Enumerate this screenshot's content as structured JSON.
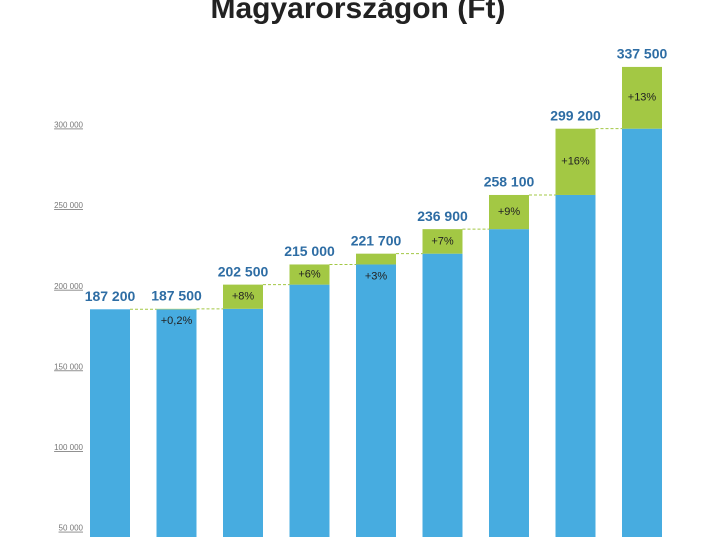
{
  "chart_data": {
    "type": "waterfall",
    "title": "Magyarországon (Ft)",
    "values": [
      187200,
      187500,
      202500,
      215000,
      221700,
      236900,
      258100,
      299200,
      337500
    ],
    "value_labels": [
      "187 200",
      "187 500",
      "202 500",
      "215 000",
      "221 700",
      "236 900",
      "258 100",
      "299 200",
      "337 500"
    ],
    "change_labels": [
      null,
      "+0,2%",
      "+8%",
      "+6%",
      "+3%",
      "+7%",
      "+9%",
      "+16%",
      "+13%"
    ],
    "base_color": "#47ace0",
    "increase_color": "#a3c844",
    "ylim": [
      46000,
      379000
    ],
    "yticks": [
      {
        "value": 50000,
        "label": "50 000"
      },
      {
        "value": 100000,
        "label": "100 000"
      },
      {
        "value": 150000,
        "label": "150 000"
      },
      {
        "value": 200000,
        "label": "200 000"
      },
      {
        "value": 250000,
        "label": "250 000"
      },
      {
        "value": 300000,
        "label": "300 000"
      }
    ]
  }
}
